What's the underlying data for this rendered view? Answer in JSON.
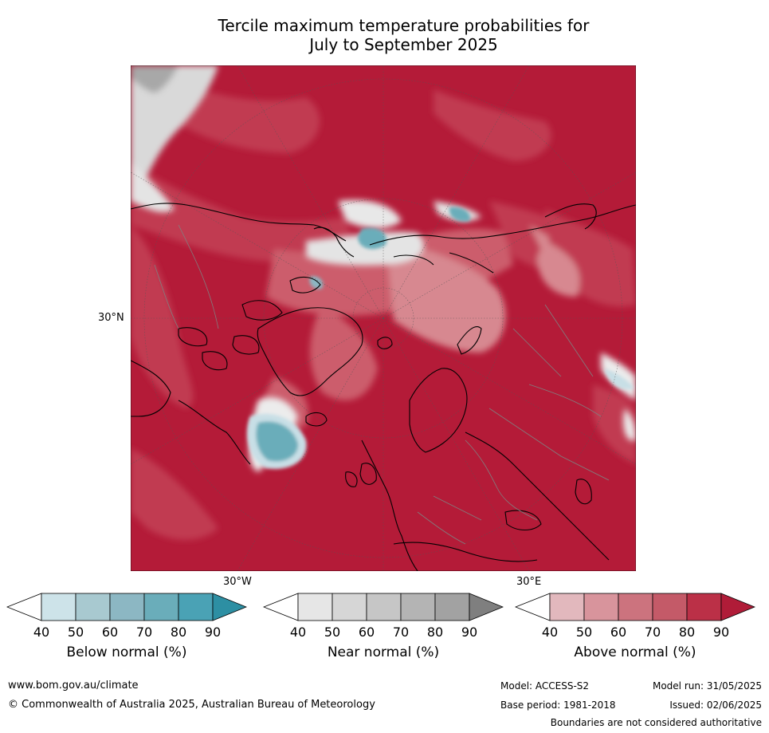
{
  "title_line1": "Tercile maximum temperature probabilities for",
  "title_line2": "July to September 2025",
  "map": {
    "lat_label": "30°N",
    "lon_label_west": "30°W",
    "lon_label_east": "30°E",
    "colors": {
      "above_90": "#b41b38",
      "above_80": "#c13a51",
      "above_70": "#cc5d6c",
      "above_60": "#d78890",
      "above_50": "#e0b3b7",
      "near": "#d9d9d9",
      "near_dark": "#a8a8a8",
      "below_low": "#c8dfe6",
      "below_high": "#4aa2b5",
      "coastline": "#000000",
      "borders": "#808080"
    }
  },
  "legends": [
    {
      "title": "Below normal (%)",
      "ticks": [
        "40",
        "50",
        "60",
        "70",
        "80",
        "90"
      ],
      "colors": [
        "#ffffff",
        "#cde3e9",
        "#a8c9d0",
        "#8cb7c3",
        "#6aadba",
        "#4aa2b5",
        "#2d8fa3"
      ]
    },
    {
      "title": "Near normal (%)",
      "ticks": [
        "40",
        "50",
        "60",
        "70",
        "80",
        "90"
      ],
      "colors": [
        "#ffffff",
        "#e6e6e6",
        "#d6d6d6",
        "#c6c6c6",
        "#b4b4b4",
        "#a2a2a2",
        "#7f7f7f"
      ]
    },
    {
      "title": "Above normal (%)",
      "ticks": [
        "40",
        "50",
        "60",
        "70",
        "80",
        "90"
      ],
      "colors": [
        "#ffffff",
        "#e2b8bd",
        "#d8949c",
        "#cc737e",
        "#c45a68",
        "#bb3047",
        "#b01c38"
      ]
    }
  ],
  "footer": {
    "website": "www.bom.gov.au/climate",
    "copyright": "© Commonwealth of Australia 2025, Australian Bureau of Meteorology",
    "model": "Model: ACCESS-S2",
    "model_run": "Model run: 31/05/2025",
    "base_period": "Base period: 1981-2018",
    "issued": "Issued: 02/06/2025",
    "boundaries_note": "Boundaries are not considered authoritative"
  }
}
